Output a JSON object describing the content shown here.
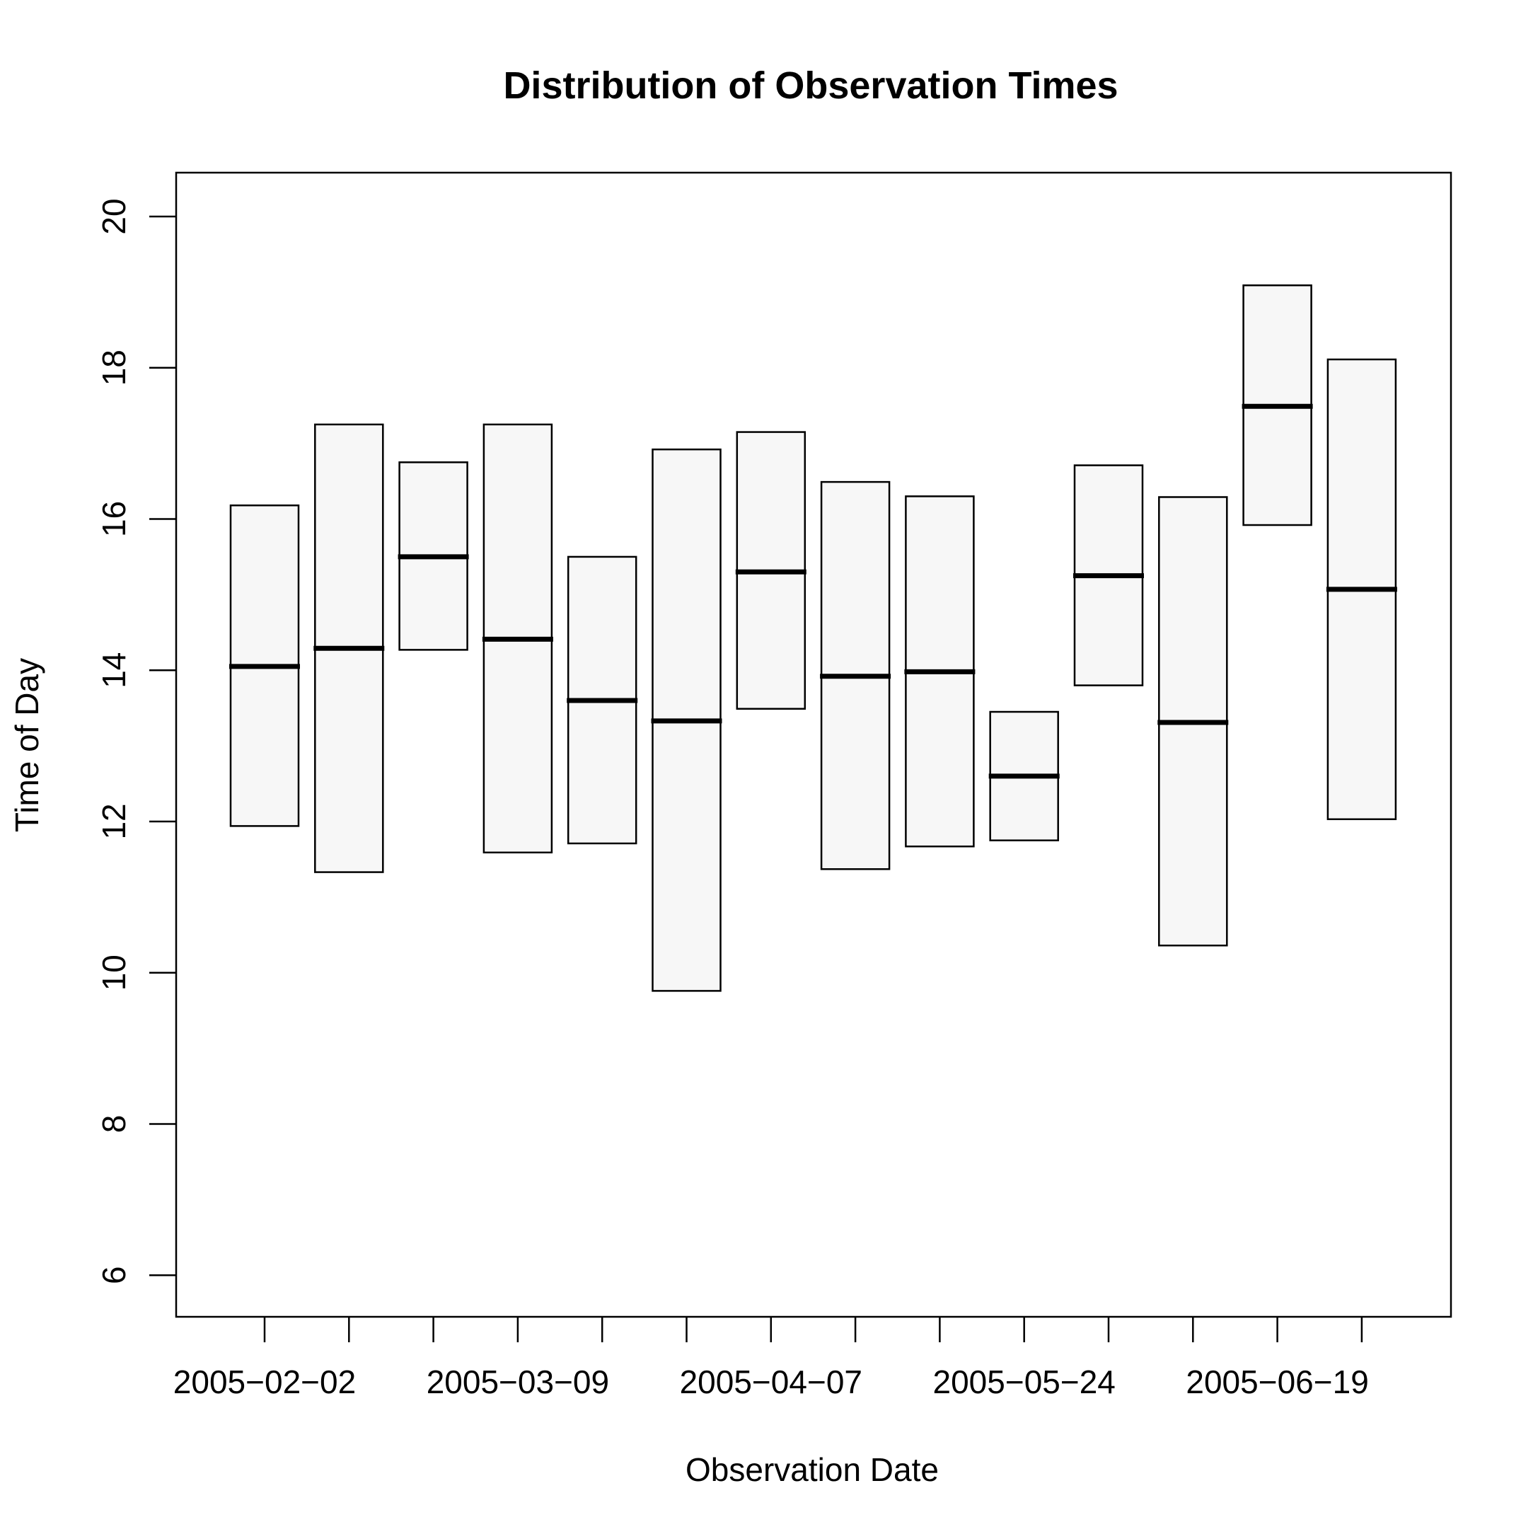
{
  "chart_data": {
    "type": "box",
    "title": "Distribution of Observation Times",
    "xlabel": "Observation Date",
    "ylabel": "Time of Day",
    "ylim": [
      5.45,
      20.58
    ],
    "yticks": [
      6,
      8,
      10,
      12,
      14,
      16,
      18,
      20
    ],
    "x_tick_labels": [
      "2005-02-02",
      "2005-03-09",
      "2005-04-07",
      "2005-05-24",
      "2005-06-19"
    ],
    "boxes": [
      {
        "low": 11.94,
        "median": 14.05,
        "high": 16.18
      },
      {
        "low": 11.33,
        "median": 14.29,
        "high": 17.25
      },
      {
        "low": 14.27,
        "median": 15.5,
        "high": 16.75
      },
      {
        "low": 11.59,
        "median": 14.41,
        "high": 17.25
      },
      {
        "low": 11.71,
        "median": 13.6,
        "high": 15.5
      },
      {
        "low": 9.76,
        "median": 13.33,
        "high": 16.92
      },
      {
        "low": 13.49,
        "median": 15.3,
        "high": 17.15
      },
      {
        "low": 11.37,
        "median": 13.92,
        "high": 16.49
      },
      {
        "low": 11.67,
        "median": 13.98,
        "high": 16.3
      },
      {
        "low": 11.75,
        "median": 12.6,
        "high": 13.45
      },
      {
        "low": 13.8,
        "median": 15.25,
        "high": 16.71
      },
      {
        "low": 10.36,
        "median": 13.31,
        "high": 16.29
      },
      {
        "low": 15.92,
        "median": 17.49,
        "high": 19.09
      },
      {
        "low": 12.03,
        "median": 15.07,
        "high": 18.11
      }
    ],
    "box_fill": "#f7f7f7",
    "line_color": "#000000",
    "grid": false,
    "legend": "none"
  }
}
